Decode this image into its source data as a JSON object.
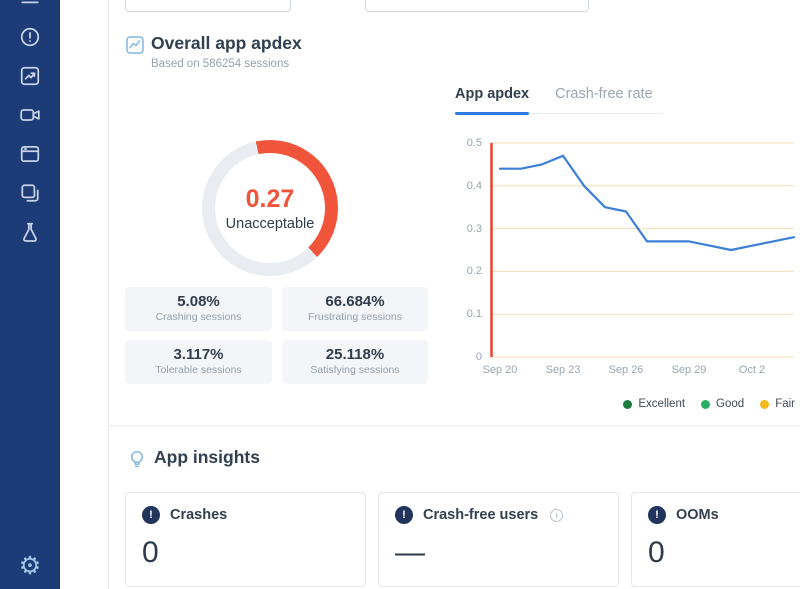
{
  "sidebar": {
    "bg_color": "#1d3b77",
    "icons": [
      "menu",
      "alert-circle",
      "trend-arrow",
      "video-camera",
      "browser-window",
      "copy-layers",
      "flask"
    ],
    "settings_icon": "gear"
  },
  "apdex": {
    "title": "Overall app apdex",
    "subtitle": "Based on 586254 sessions",
    "score": "0.27",
    "rating": "Unacceptable",
    "score_color": "#f0543a",
    "tabs": [
      {
        "label": "App apdex",
        "active": true
      },
      {
        "label": "Crash-free rate",
        "active": false
      }
    ],
    "stats": [
      {
        "value": "5.08%",
        "label": "Crashing sessions"
      },
      {
        "value": "66.684%",
        "label": "Frustrating sessions"
      },
      {
        "value": "3.117%",
        "label": "Tolerable sessions"
      },
      {
        "value": "25.118%",
        "label": "Satisfying sessions"
      }
    ]
  },
  "chart_data": {
    "type": "line",
    "title": "App apdex",
    "x": [
      "Sep 20",
      "Sep 21",
      "Sep 22",
      "Sep 23",
      "Sep 24",
      "Sep 25",
      "Sep 26",
      "Sep 27",
      "Sep 28",
      "Sep 29",
      "Sep 30",
      "Oct 1",
      "Oct 2",
      "Oct 3",
      "Oct 4"
    ],
    "series": [
      {
        "name": "App apdex",
        "color": "#3c7fd6",
        "values": [
          0.44,
          0.44,
          0.45,
          0.47,
          0.4,
          0.35,
          0.34,
          0.27,
          0.27,
          0.27,
          0.26,
          0.25,
          0.26,
          0.27,
          0.28
        ]
      }
    ],
    "ylim": [
      0,
      0.5
    ],
    "y_ticks": [
      0,
      0.1,
      0.2,
      0.3,
      0.4,
      0.5
    ],
    "y_tick_labels": [
      "0.5",
      "0.4",
      "0.3",
      "0.2",
      "0.1",
      "0"
    ],
    "x_tick_labels": [
      "Sep 20",
      "Sep 23",
      "Sep 26",
      "Sep 29",
      "Oct 2"
    ],
    "grid": true,
    "grid_color": "#f3ddb6",
    "start_marker_color": "#e8442e",
    "legend_position": "bottom-right",
    "legend": [
      {
        "label": "Excellent",
        "color": "#1b7c3d"
      },
      {
        "label": "Good",
        "color": "#27ae60"
      },
      {
        "label": "Fair",
        "color": "#f5b921"
      }
    ]
  },
  "insights": {
    "title": "App insights",
    "cards": [
      {
        "label": "Crashes",
        "value": "0",
        "info": false
      },
      {
        "label": "Crash-free users",
        "value": "—",
        "info": true
      },
      {
        "label": "OOMs",
        "value": "0",
        "info": false
      }
    ]
  }
}
